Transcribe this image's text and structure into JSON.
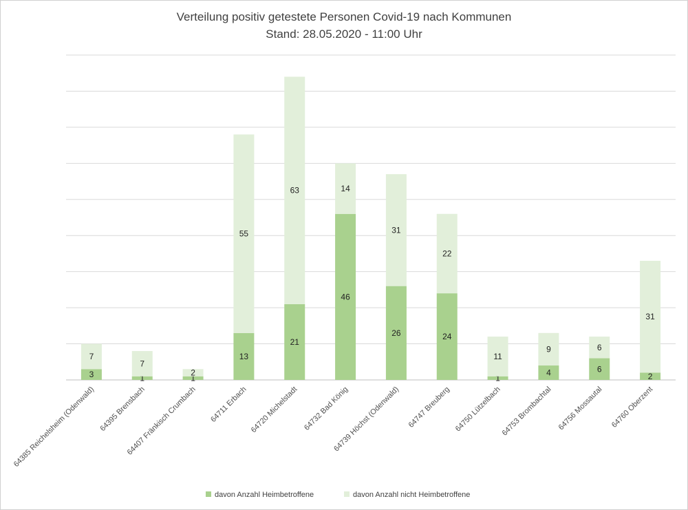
{
  "chart_data": {
    "type": "bar",
    "stacked": true,
    "title": "Verteilung positiv getestete Personen Covid-19 nach Kommunen",
    "subtitle": "Stand: 28.05.2020 - 11:00 Uhr",
    "categories": [
      "64385 Reichelsheim (Odenwald)",
      "64395 Brensbach",
      "64407 Fränkisch Crumbach",
      "64711 Erbach",
      "64720 Michelstadt",
      "64732 Bad König",
      "64739 Höchst (Odenwald)",
      "64747 Breuberg",
      "64750 Lützelbach",
      "64753 Brombachtal",
      "64756 Mossautal",
      "64760 Oberzent"
    ],
    "series": [
      {
        "name": "davon Anzahl Heimbetroffene",
        "color": "#a9d18e",
        "values": [
          3,
          1,
          1,
          13,
          21,
          46,
          26,
          24,
          1,
          4,
          6,
          2
        ]
      },
      {
        "name": "davon Anzahl nicht Heimbetroffene",
        "color": "#e2efda",
        "values": [
          7,
          7,
          2,
          55,
          63,
          14,
          31,
          22,
          11,
          9,
          6,
          31
        ]
      }
    ],
    "ylim": [
      0,
      90
    ],
    "gridlines": true,
    "legend": "bottom",
    "xlabel": "",
    "ylabel": ""
  }
}
